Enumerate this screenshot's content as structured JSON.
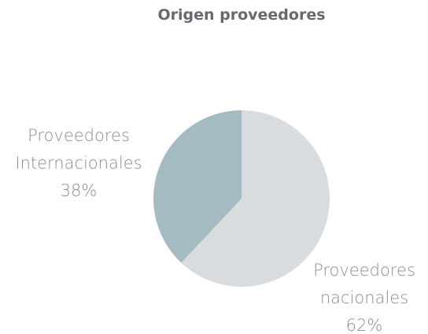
{
  "chart_data": {
    "type": "pie",
    "title": "Origen proveedores",
    "categories": [
      "Proveedores nacionales",
      "Proveedores Internacionales"
    ],
    "values": [
      62,
      38
    ],
    "value_labels": [
      "62%",
      "38%"
    ],
    "colors": [
      "#d9dcdf",
      "#a4bcc1"
    ]
  }
}
